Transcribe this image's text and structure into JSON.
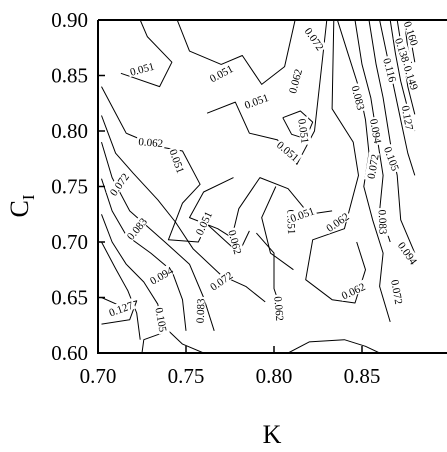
{
  "chart_data": {
    "type": "contour",
    "xlabel": "K",
    "ylabel_main": "C",
    "ylabel_sub": "I",
    "xlim": [
      0.7,
      0.88
    ],
    "ylim": [
      0.6,
      0.9
    ],
    "x_ticks": [
      "0.70",
      "0.75",
      "0.80",
      "0.85"
    ],
    "x_tick_values": [
      0.7,
      0.75,
      0.8,
      0.85
    ],
    "y_ticks": [
      "0.60",
      "0.65",
      "0.70",
      "0.75",
      "0.80",
      "0.85",
      "0.90"
    ],
    "y_tick_values": [
      0.6,
      0.65,
      0.7,
      0.75,
      0.8,
      0.85,
      0.9
    ],
    "grid": false,
    "contours": [
      {
        "level": "0.051",
        "points": [
          [
            0.713,
            0.852
          ],
          [
            0.735,
            0.84
          ],
          [
            0.742,
            0.862
          ],
          [
            0.728,
            0.885
          ],
          [
            0.724,
            0.9
          ]
        ]
      },
      {
        "level": "0.051",
        "points": [
          [
            0.745,
            0.9
          ],
          [
            0.752,
            0.872
          ],
          [
            0.77,
            0.86
          ],
          [
            0.782,
            0.868
          ],
          [
            0.793,
            0.842
          ],
          [
            0.806,
            0.858
          ],
          [
            0.812,
            0.9
          ]
        ]
      },
      {
        "level": "0.051",
        "points": [
          [
            0.762,
            0.816
          ],
          [
            0.778,
            0.826
          ],
          [
            0.786,
            0.798
          ],
          [
            0.802,
            0.792
          ],
          [
            0.813,
            0.77
          ],
          [
            0.823,
            0.8
          ],
          [
            0.83,
            0.9
          ]
        ]
      },
      {
        "level": "0.051",
        "points": [
          [
            0.777,
            0.758
          ],
          [
            0.76,
            0.745
          ],
          [
            0.752,
            0.722
          ],
          [
            0.768,
            0.712
          ],
          [
            0.776,
            0.704
          ],
          [
            0.78,
            0.73
          ],
          [
            0.792,
            0.758
          ],
          [
            0.808,
            0.748
          ],
          [
            0.82,
            0.725
          ],
          [
            0.833,
            0.728
          ]
        ]
      },
      {
        "level": "0.051",
        "points": [
          [
            0.811,
            0.675
          ],
          [
            0.798,
            0.69
          ],
          [
            0.793,
            0.722
          ],
          [
            0.801,
            0.75
          ]
        ]
      },
      {
        "level": "0.062",
        "points": [
          [
            0.702,
            0.84
          ],
          [
            0.716,
            0.798
          ],
          [
            0.734,
            0.786
          ],
          [
            0.748,
            0.782
          ],
          [
            0.758,
            0.752
          ],
          [
            0.748,
            0.735
          ],
          [
            0.74,
            0.702
          ],
          [
            0.757,
            0.7
          ],
          [
            0.762,
            0.716
          ],
          [
            0.78,
            0.69
          ],
          [
            0.786,
            0.71
          ]
        ]
      },
      {
        "level": "0.062",
        "points": [
          [
            0.805,
            0.812
          ],
          [
            0.815,
            0.818
          ],
          [
            0.822,
            0.808
          ],
          [
            0.818,
            0.793
          ],
          [
            0.81,
            0.797
          ],
          [
            0.805,
            0.812
          ]
        ]
      },
      {
        "level": "0.062",
        "points": [
          [
            0.834,
            0.9
          ],
          [
            0.833,
            0.82
          ],
          [
            0.845,
            0.79
          ],
          [
            0.848,
            0.76
          ],
          [
            0.84,
            0.712
          ],
          [
            0.822,
            0.702
          ],
          [
            0.818,
            0.666
          ],
          [
            0.833,
            0.648
          ],
          [
            0.846,
            0.645
          ],
          [
            0.852,
            0.675
          ],
          [
            0.847,
            0.7
          ]
        ]
      },
      {
        "level": "0.062",
        "points": [
          [
            0.79,
            0.708
          ],
          [
            0.8,
            0.69
          ],
          [
            0.8,
            0.658
          ],
          [
            0.806,
            0.63
          ]
        ]
      },
      {
        "level": "0.072",
        "points": [
          [
            0.702,
            0.814
          ],
          [
            0.71,
            0.78
          ],
          [
            0.72,
            0.762
          ],
          [
            0.734,
            0.738
          ],
          [
            0.744,
            0.718
          ],
          [
            0.754,
            0.694
          ],
          [
            0.77,
            0.67
          ],
          [
            0.784,
            0.66
          ],
          [
            0.795,
            0.646
          ]
        ]
      },
      {
        "level": "0.072",
        "points": [
          [
            0.836,
            0.9
          ],
          [
            0.842,
            0.87
          ],
          [
            0.848,
            0.84
          ],
          [
            0.852,
            0.81
          ],
          [
            0.854,
            0.78
          ],
          [
            0.851,
            0.75
          ],
          [
            0.856,
            0.72
          ],
          [
            0.862,
            0.69
          ],
          [
            0.86,
            0.66
          ],
          [
            0.866,
            0.628
          ]
        ]
      },
      {
        "level": "0.083",
        "points": [
          [
            0.702,
            0.79
          ],
          [
            0.708,
            0.758
          ],
          [
            0.718,
            0.728
          ],
          [
            0.738,
            0.7
          ],
          [
            0.752,
            0.68
          ],
          [
            0.76,
            0.65
          ],
          [
            0.766,
            0.62
          ]
        ]
      },
      {
        "level": "0.083",
        "points": [
          [
            0.846,
            0.9
          ],
          [
            0.85,
            0.86
          ],
          [
            0.855,
            0.83
          ],
          [
            0.858,
            0.8
          ],
          [
            0.862,
            0.76
          ],
          [
            0.86,
            0.728
          ],
          [
            0.866,
            0.7
          ]
        ]
      },
      {
        "level": "0.094",
        "points": [
          [
            0.702,
            0.757
          ],
          [
            0.708,
            0.728
          ],
          [
            0.716,
            0.706
          ],
          [
            0.73,
            0.69
          ],
          [
            0.742,
            0.674
          ],
          [
            0.748,
            0.648
          ],
          [
            0.75,
            0.62
          ]
        ]
      },
      {
        "level": "0.094",
        "points": [
          [
            0.854,
            0.9
          ],
          [
            0.858,
            0.86
          ],
          [
            0.862,
            0.83
          ],
          [
            0.866,
            0.79
          ],
          [
            0.87,
            0.76
          ],
          [
            0.872,
            0.72
          ],
          [
            0.88,
            0.69
          ]
        ]
      },
      {
        "level": "0.105",
        "points": [
          [
            0.702,
            0.725
          ],
          [
            0.708,
            0.7
          ],
          [
            0.716,
            0.68
          ],
          [
            0.726,
            0.664
          ],
          [
            0.734,
            0.644
          ],
          [
            0.737,
            0.618
          ]
        ]
      },
      {
        "level": "0.105",
        "points": [
          [
            0.86,
            0.9
          ],
          [
            0.864,
            0.87
          ],
          [
            0.868,
            0.84
          ],
          [
            0.872,
            0.81
          ],
          [
            0.876,
            0.78
          ],
          [
            0.88,
            0.76
          ]
        ]
      },
      {
        "level": "0.116",
        "points": [
          [
            0.702,
            0.7
          ],
          [
            0.71,
            0.676
          ],
          [
            0.717,
            0.656
          ],
          [
            0.722,
            0.636
          ],
          [
            0.724,
            0.612
          ]
        ]
      },
      {
        "level": "0.116",
        "points": [
          [
            0.866,
            0.9
          ],
          [
            0.869,
            0.87
          ],
          [
            0.872,
            0.845
          ],
          [
            0.876,
            0.82
          ],
          [
            0.88,
            0.8
          ]
        ]
      },
      {
        "level": "0.127",
        "points": [
          [
            0.702,
            0.65
          ],
          [
            0.712,
            0.643
          ],
          [
            0.722,
            0.647
          ],
          [
            0.718,
            0.63
          ],
          [
            0.702,
            0.626
          ]
        ]
      },
      {
        "level": "0.127",
        "points": [
          [
            0.87,
            0.9
          ],
          [
            0.873,
            0.87
          ],
          [
            0.876,
            0.84
          ],
          [
            0.88,
            0.815
          ]
        ]
      },
      {
        "level": "0.138",
        "points": [
          [
            0.874,
            0.9
          ],
          [
            0.876,
            0.875
          ],
          [
            0.88,
            0.85
          ]
        ]
      },
      {
        "level": "0.149",
        "points": [
          [
            0.876,
            0.9
          ],
          [
            0.878,
            0.88
          ],
          [
            0.88,
            0.862
          ]
        ]
      },
      {
        "level": "0.160",
        "points": [
          [
            0.878,
            0.9
          ],
          [
            0.88,
            0.888
          ]
        ]
      },
      {
        "level": "0.062",
        "points": [
          [
            0.725,
            0.6
          ],
          [
            0.726,
            0.612
          ],
          [
            0.74,
            0.62
          ],
          [
            0.748,
            0.608
          ],
          [
            0.76,
            0.6
          ]
        ]
      },
      {
        "level": "0.062",
        "points": [
          [
            0.808,
            0.6
          ],
          [
            0.82,
            0.61
          ],
          [
            0.84,
            0.612
          ],
          [
            0.852,
            0.606
          ],
          [
            0.86,
            0.6
          ]
        ]
      }
    ],
    "labels": [
      {
        "text": "0.051",
        "x": 0.725,
        "y": 0.856,
        "angle": -15
      },
      {
        "text": "0.051",
        "x": 0.77,
        "y": 0.852,
        "angle": -28
      },
      {
        "text": "0.051",
        "x": 0.79,
        "y": 0.827,
        "angle": -20
      },
      {
        "text": "0.051",
        "x": 0.745,
        "y": 0.773,
        "angle": 70
      },
      {
        "text": "0.051",
        "x": 0.808,
        "y": 0.782,
        "angle": 40
      },
      {
        "text": "0.051",
        "x": 0.76,
        "y": 0.717,
        "angle": -65
      },
      {
        "text": "0.051",
        "x": 0.81,
        "y": 0.718,
        "angle": 88
      },
      {
        "text": "0.051",
        "x": 0.816,
        "y": 0.725,
        "angle": -20
      },
      {
        "text": "0.051",
        "x": 0.817,
        "y": 0.8,
        "angle": 82
      },
      {
        "text": "0.062",
        "x": 0.73,
        "y": 0.79,
        "angle": 5
      },
      {
        "text": "0.062",
        "x": 0.812,
        "y": 0.845,
        "angle": -75
      },
      {
        "text": "0.062",
        "x": 0.778,
        "y": 0.7,
        "angle": 75
      },
      {
        "text": "0.062",
        "x": 0.836,
        "y": 0.718,
        "angle": -35
      },
      {
        "text": "0.062",
        "x": 0.845,
        "y": 0.656,
        "angle": -25
      },
      {
        "text": "0.062",
        "x": 0.803,
        "y": 0.64,
        "angle": 85
      },
      {
        "text": "0.072",
        "x": 0.823,
        "y": 0.883,
        "angle": 55
      },
      {
        "text": "0.072",
        "x": 0.712,
        "y": 0.752,
        "angle": -55
      },
      {
        "text": "0.072",
        "x": 0.77,
        "y": 0.665,
        "angle": -35
      },
      {
        "text": "0.072",
        "x": 0.856,
        "y": 0.768,
        "angle": -80
      },
      {
        "text": "0.072",
        "x": 0.87,
        "y": 0.655,
        "angle": 80
      },
      {
        "text": "0.083",
        "x": 0.848,
        "y": 0.83,
        "angle": 75
      },
      {
        "text": "0.083",
        "x": 0.722,
        "y": 0.712,
        "angle": -50
      },
      {
        "text": "0.083",
        "x": 0.758,
        "y": 0.638,
        "angle": -88
      },
      {
        "text": "0.083",
        "x": 0.862,
        "y": 0.718,
        "angle": 88
      },
      {
        "text": "0.094",
        "x": 0.858,
        "y": 0.8,
        "angle": 80
      },
      {
        "text": "0.094",
        "x": 0.736,
        "y": 0.67,
        "angle": -30
      },
      {
        "text": "0.094",
        "x": 0.876,
        "y": 0.69,
        "angle": 55
      },
      {
        "text": "0.105",
        "x": 0.867,
        "y": 0.775,
        "angle": 70
      },
      {
        "text": "0.105",
        "x": 0.736,
        "y": 0.63,
        "angle": 80
      },
      {
        "text": "0.116",
        "x": 0.866,
        "y": 0.855,
        "angle": 75
      },
      {
        "text": "0.127",
        "x": 0.876,
        "y": 0.812,
        "angle": 80
      },
      {
        "text": "0.127",
        "x": 0.713,
        "y": 0.64,
        "angle": -20
      },
      {
        "text": "0.138",
        "x": 0.873,
        "y": 0.873,
        "angle": 72
      },
      {
        "text": "0.149",
        "x": 0.878,
        "y": 0.848,
        "angle": 72
      },
      {
        "text": "0.160",
        "x": 0.878,
        "y": 0.888,
        "angle": 72
      }
    ]
  }
}
